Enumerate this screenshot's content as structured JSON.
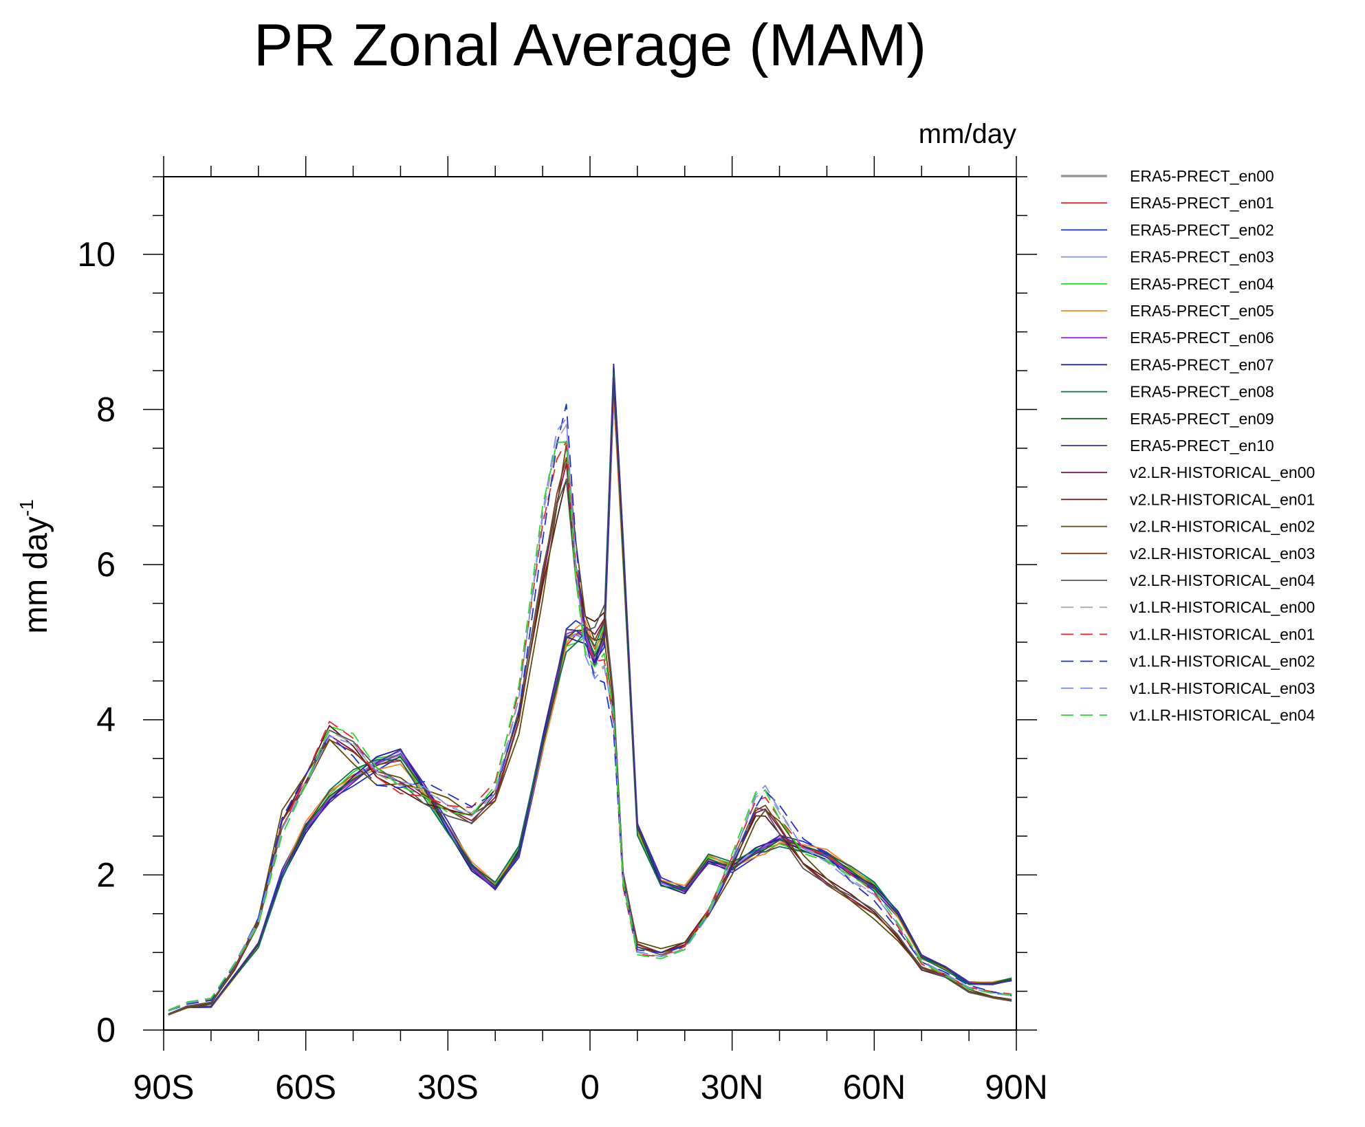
{
  "chart_data": {
    "type": "line",
    "title": "PR Zonal Average (MAM)",
    "units_label": "mm/day",
    "xlabel": "",
    "ylabel": "mm day",
    "ylabel_sup": "-1",
    "xlim": [
      -90,
      90
    ],
    "ylim": [
      0,
      11
    ],
    "xticks": [
      {
        "value": -90,
        "label": "90S"
      },
      {
        "value": -60,
        "label": "60S"
      },
      {
        "value": -30,
        "label": "30S"
      },
      {
        "value": 0,
        "label": "0"
      },
      {
        "value": 30,
        "label": "30N"
      },
      {
        "value": 60,
        "label": "60N"
      },
      {
        "value": 90,
        "label": "90N"
      }
    ],
    "yticks": [
      {
        "value": 0,
        "label": "0"
      },
      {
        "value": 2,
        "label": "2"
      },
      {
        "value": 4,
        "label": "4"
      },
      {
        "value": 6,
        "label": "6"
      },
      {
        "value": 8,
        "label": "8"
      },
      {
        "value": 10,
        "label": "10"
      }
    ],
    "x": [
      -89,
      -85,
      -80,
      -75,
      -70,
      -65,
      -60,
      -55,
      -50,
      -45,
      -40,
      -35,
      -30,
      -25,
      -20,
      -15,
      -10,
      -7,
      -5,
      -3,
      -1,
      1,
      3,
      5,
      7,
      10,
      15,
      20,
      25,
      30,
      35,
      37,
      40,
      45,
      50,
      55,
      60,
      65,
      70,
      75,
      80,
      85,
      89
    ],
    "groups": {
      "era5": [
        0.2,
        0.3,
        0.3,
        0.7,
        1.1,
        2.0,
        2.6,
        3.0,
        3.25,
        3.45,
        3.55,
        3.1,
        2.6,
        2.1,
        1.85,
        2.3,
        3.7,
        4.5,
        5.05,
        5.1,
        5.1,
        4.8,
        5.1,
        8.4,
        6.2,
        2.6,
        1.9,
        1.8,
        2.2,
        2.1,
        2.3,
        2.35,
        2.45,
        2.35,
        2.25,
        2.05,
        1.85,
        1.5,
        0.95,
        0.8,
        0.6,
        0.6,
        0.65
      ],
      "v2": [
        0.2,
        0.3,
        0.35,
        0.8,
        1.4,
        2.7,
        3.2,
        3.8,
        3.6,
        3.3,
        3.2,
        3.0,
        2.85,
        2.7,
        3.0,
        4.0,
        5.8,
        6.8,
        7.3,
        6.0,
        5.2,
        5.1,
        5.3,
        4.2,
        2.0,
        1.1,
        1.0,
        1.1,
        1.5,
        2.1,
        2.8,
        2.85,
        2.6,
        2.15,
        1.9,
        1.7,
        1.5,
        1.2,
        0.8,
        0.7,
        0.5,
        0.42,
        0.38
      ],
      "v1": [
        0.25,
        0.35,
        0.4,
        0.85,
        1.4,
        2.6,
        3.2,
        3.85,
        3.7,
        3.3,
        3.15,
        3.1,
        2.9,
        2.8,
        3.1,
        4.3,
        6.6,
        7.6,
        7.8,
        6.0,
        4.9,
        4.6,
        4.7,
        4.0,
        1.9,
        1.0,
        0.95,
        1.05,
        1.5,
        2.2,
        3.0,
        3.1,
        2.8,
        2.35,
        2.2,
        1.95,
        1.75,
        1.35,
        0.88,
        0.72,
        0.55,
        0.48,
        0.45
      ]
    },
    "series": [
      {
        "name": "ERA5-PRECT_en00",
        "color": "#999999",
        "dash": "solid",
        "group": "era5",
        "k": 0,
        "width": 3.5
      },
      {
        "name": "ERA5-PRECT_en01",
        "color": "#e8262f",
        "dash": "solid",
        "group": "era5",
        "k": 1,
        "width": 1.8
      },
      {
        "name": "ERA5-PRECT_en02",
        "color": "#1f2fd6",
        "dash": "solid",
        "group": "era5",
        "k": 2,
        "width": 1.8
      },
      {
        "name": "ERA5-PRECT_en03",
        "color": "#7f8ff0",
        "dash": "solid",
        "group": "era5",
        "k": 3,
        "width": 1.8
      },
      {
        "name": "ERA5-PRECT_en04",
        "color": "#22dd22",
        "dash": "solid",
        "group": "era5",
        "k": 4,
        "width": 1.8
      },
      {
        "name": "ERA5-PRECT_en05",
        "color": "#f08a1e",
        "dash": "solid",
        "group": "era5",
        "k": 5,
        "width": 1.8
      },
      {
        "name": "ERA5-PRECT_en06",
        "color": "#a326e0",
        "dash": "solid",
        "group": "era5",
        "k": 6,
        "width": 1.8
      },
      {
        "name": "ERA5-PRECT_en07",
        "color": "#1d1d8e",
        "dash": "solid",
        "group": "era5",
        "k": 7,
        "width": 1.8
      },
      {
        "name": "ERA5-PRECT_en08",
        "color": "#0f6e5a",
        "dash": "solid",
        "group": "era5",
        "k": 8,
        "width": 1.8
      },
      {
        "name": "ERA5-PRECT_en09",
        "color": "#1e5a22",
        "dash": "solid",
        "group": "era5",
        "k": 9,
        "width": 1.8
      },
      {
        "name": "ERA5-PRECT_en10",
        "color": "#4a2aa0",
        "dash": "solid",
        "group": "era5",
        "k": 10,
        "width": 1.8
      },
      {
        "name": "v2.LR-HISTORICAL_en00",
        "color": "#8a1055",
        "dash": "solid",
        "group": "v2",
        "k": 0,
        "width": 1.8
      },
      {
        "name": "v2.LR-HISTORICAL_en01",
        "color": "#5a1a14",
        "dash": "solid",
        "group": "v2",
        "k": 1,
        "width": 1.8
      },
      {
        "name": "v2.LR-HISTORICAL_en02",
        "color": "#5e4a0a",
        "dash": "solid",
        "group": "v2",
        "k": 2,
        "width": 1.8
      },
      {
        "name": "v2.LR-HISTORICAL_en03",
        "color": "#7a3e14",
        "dash": "solid",
        "group": "v2",
        "k": 3,
        "width": 1.8
      },
      {
        "name": "v2.LR-HISTORICAL_en04",
        "color": "#555555",
        "dash": "solid",
        "group": "v2",
        "k": 4,
        "width": 1.8
      },
      {
        "name": "v1.LR-HISTORICAL_en00",
        "color": "#aaaaaa",
        "dash": "dashed",
        "group": "v1",
        "k": 0,
        "width": 1.8
      },
      {
        "name": "v1.LR-HISTORICAL_en01",
        "color": "#e8262f",
        "dash": "dashed",
        "group": "v1",
        "k": 1,
        "width": 1.8
      },
      {
        "name": "v1.LR-HISTORICAL_en02",
        "color": "#1f2fd6",
        "dash": "dashed",
        "group": "v1",
        "k": 2,
        "width": 1.8
      },
      {
        "name": "v1.LR-HISTORICAL_en03",
        "color": "#7f8ff0",
        "dash": "dashed",
        "group": "v1",
        "k": 3,
        "width": 1.8
      },
      {
        "name": "v1.LR-HISTORICAL_en04",
        "color": "#22dd22",
        "dash": "dashed",
        "group": "v1",
        "k": 4,
        "width": 1.8
      }
    ]
  }
}
